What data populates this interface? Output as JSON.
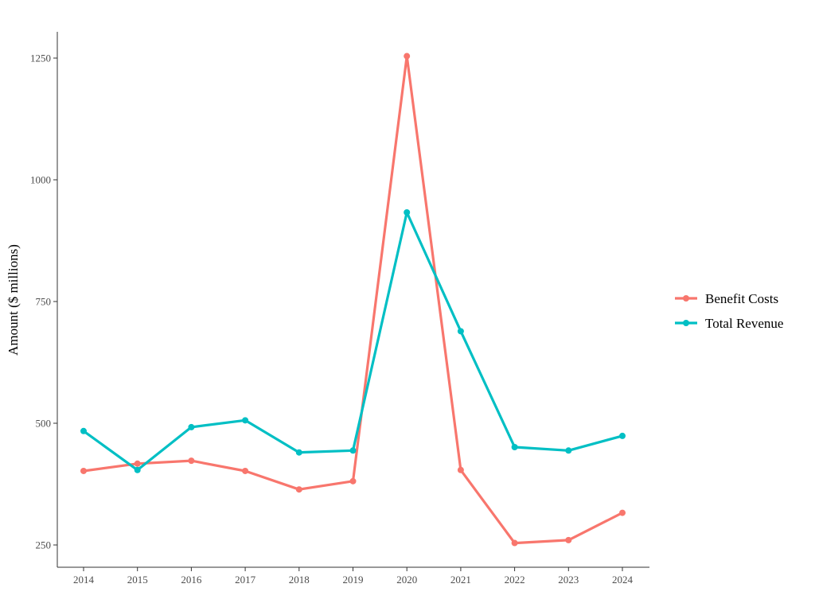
{
  "chart_data": {
    "type": "line",
    "title": "",
    "xlabel": "",
    "ylabel": "Amount ($ millions)",
    "x": [
      "2014",
      "2015",
      "2016",
      "2017",
      "2018",
      "2019",
      "2020",
      "2021",
      "2022",
      "2023",
      "2024"
    ],
    "ylim": [
      225,
      1305
    ],
    "yticks": [
      250,
      500,
      750,
      1000,
      1250
    ],
    "grid": false,
    "legend_position": "right",
    "series": [
      {
        "name": "Benefit Costs",
        "color": "#F8766D",
        "values": [
          402,
          417,
          423,
          402,
          364,
          381,
          1254,
          404,
          254,
          260,
          316
        ]
      },
      {
        "name": "Total Revenue",
        "color": "#00BFC4",
        "values": [
          484,
          404,
          492,
          506,
          440,
          444,
          933,
          689,
          451,
          444,
          474
        ]
      }
    ]
  }
}
